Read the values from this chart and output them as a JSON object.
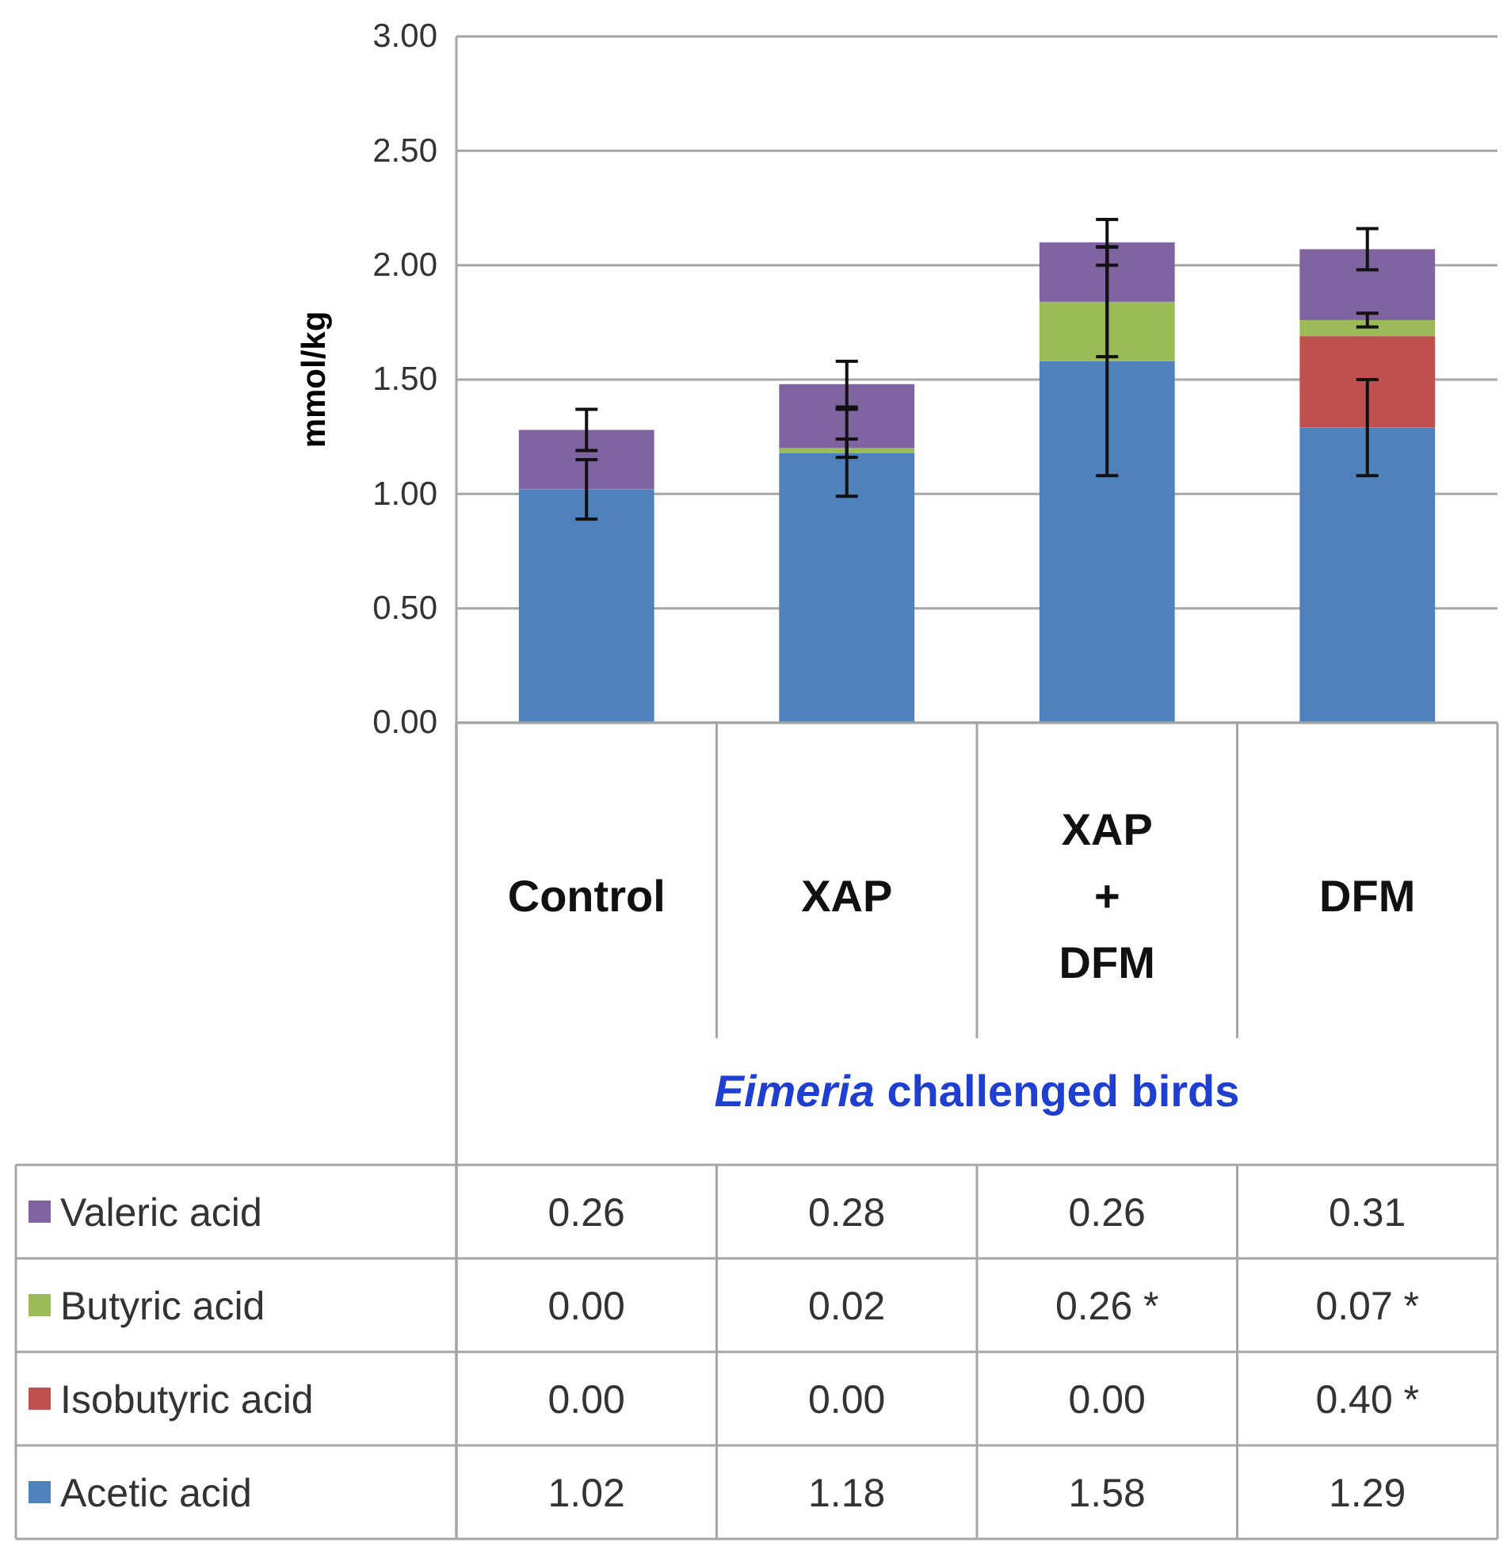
{
  "chart_data": {
    "type": "bar",
    "stacked": true,
    "categories": [
      "Control",
      "XAP",
      "XAP + DFM",
      "DFM"
    ],
    "xlabel": "Eimeria challenged birds",
    "ylabel": "mmol/kg",
    "ylim": [
      0,
      3
    ],
    "yticks": [
      {
        "value": 0,
        "label": "0.00"
      },
      {
        "value": 0.5,
        "label": "0.50"
      },
      {
        "value": 1,
        "label": "1.00"
      },
      {
        "value": 1.5,
        "label": "1.50"
      },
      {
        "value": 2,
        "label": "2.00"
      },
      {
        "value": 2.5,
        "label": "2.50"
      },
      {
        "value": 3,
        "label": "3.00"
      }
    ],
    "grid": "y",
    "legend": "bottom left",
    "series": [
      {
        "name": "Acetic acid",
        "color": "#4f81bd",
        "values": [
          1.02,
          1.18,
          1.58,
          1.29
        ],
        "errors": [
          0.13,
          0.19,
          0.5,
          0.21
        ],
        "value_labels": [
          "1.02",
          "1.18",
          "1.58",
          "1.29"
        ]
      },
      {
        "name": "Isobutyric acid",
        "color": "#c0504d",
        "values": [
          0,
          0,
          0,
          0.4
        ],
        "errors": [
          null,
          null,
          null,
          null
        ],
        "value_labels": [
          "0.00",
          "0.00",
          "0.00",
          "0.40 *"
        ]
      },
      {
        "name": "Butyric acid",
        "color": "#9bbb59",
        "values": [
          0,
          0.02,
          0.26,
          0.07
        ],
        "errors": [
          null,
          0.04,
          0.24,
          0.03
        ],
        "value_labels": [
          "0.00",
          "0.02",
          "0.26 *",
          "0.07 *"
        ]
      },
      {
        "name": "Valeric acid",
        "color": "#8064a2",
        "values": [
          0.26,
          0.28,
          0.26,
          0.31
        ],
        "errors": [
          0.09,
          0.1,
          0.1,
          0.09
        ],
        "value_labels": [
          "0.26",
          "0.28",
          "0.26",
          "0.31"
        ]
      }
    ]
  }
}
